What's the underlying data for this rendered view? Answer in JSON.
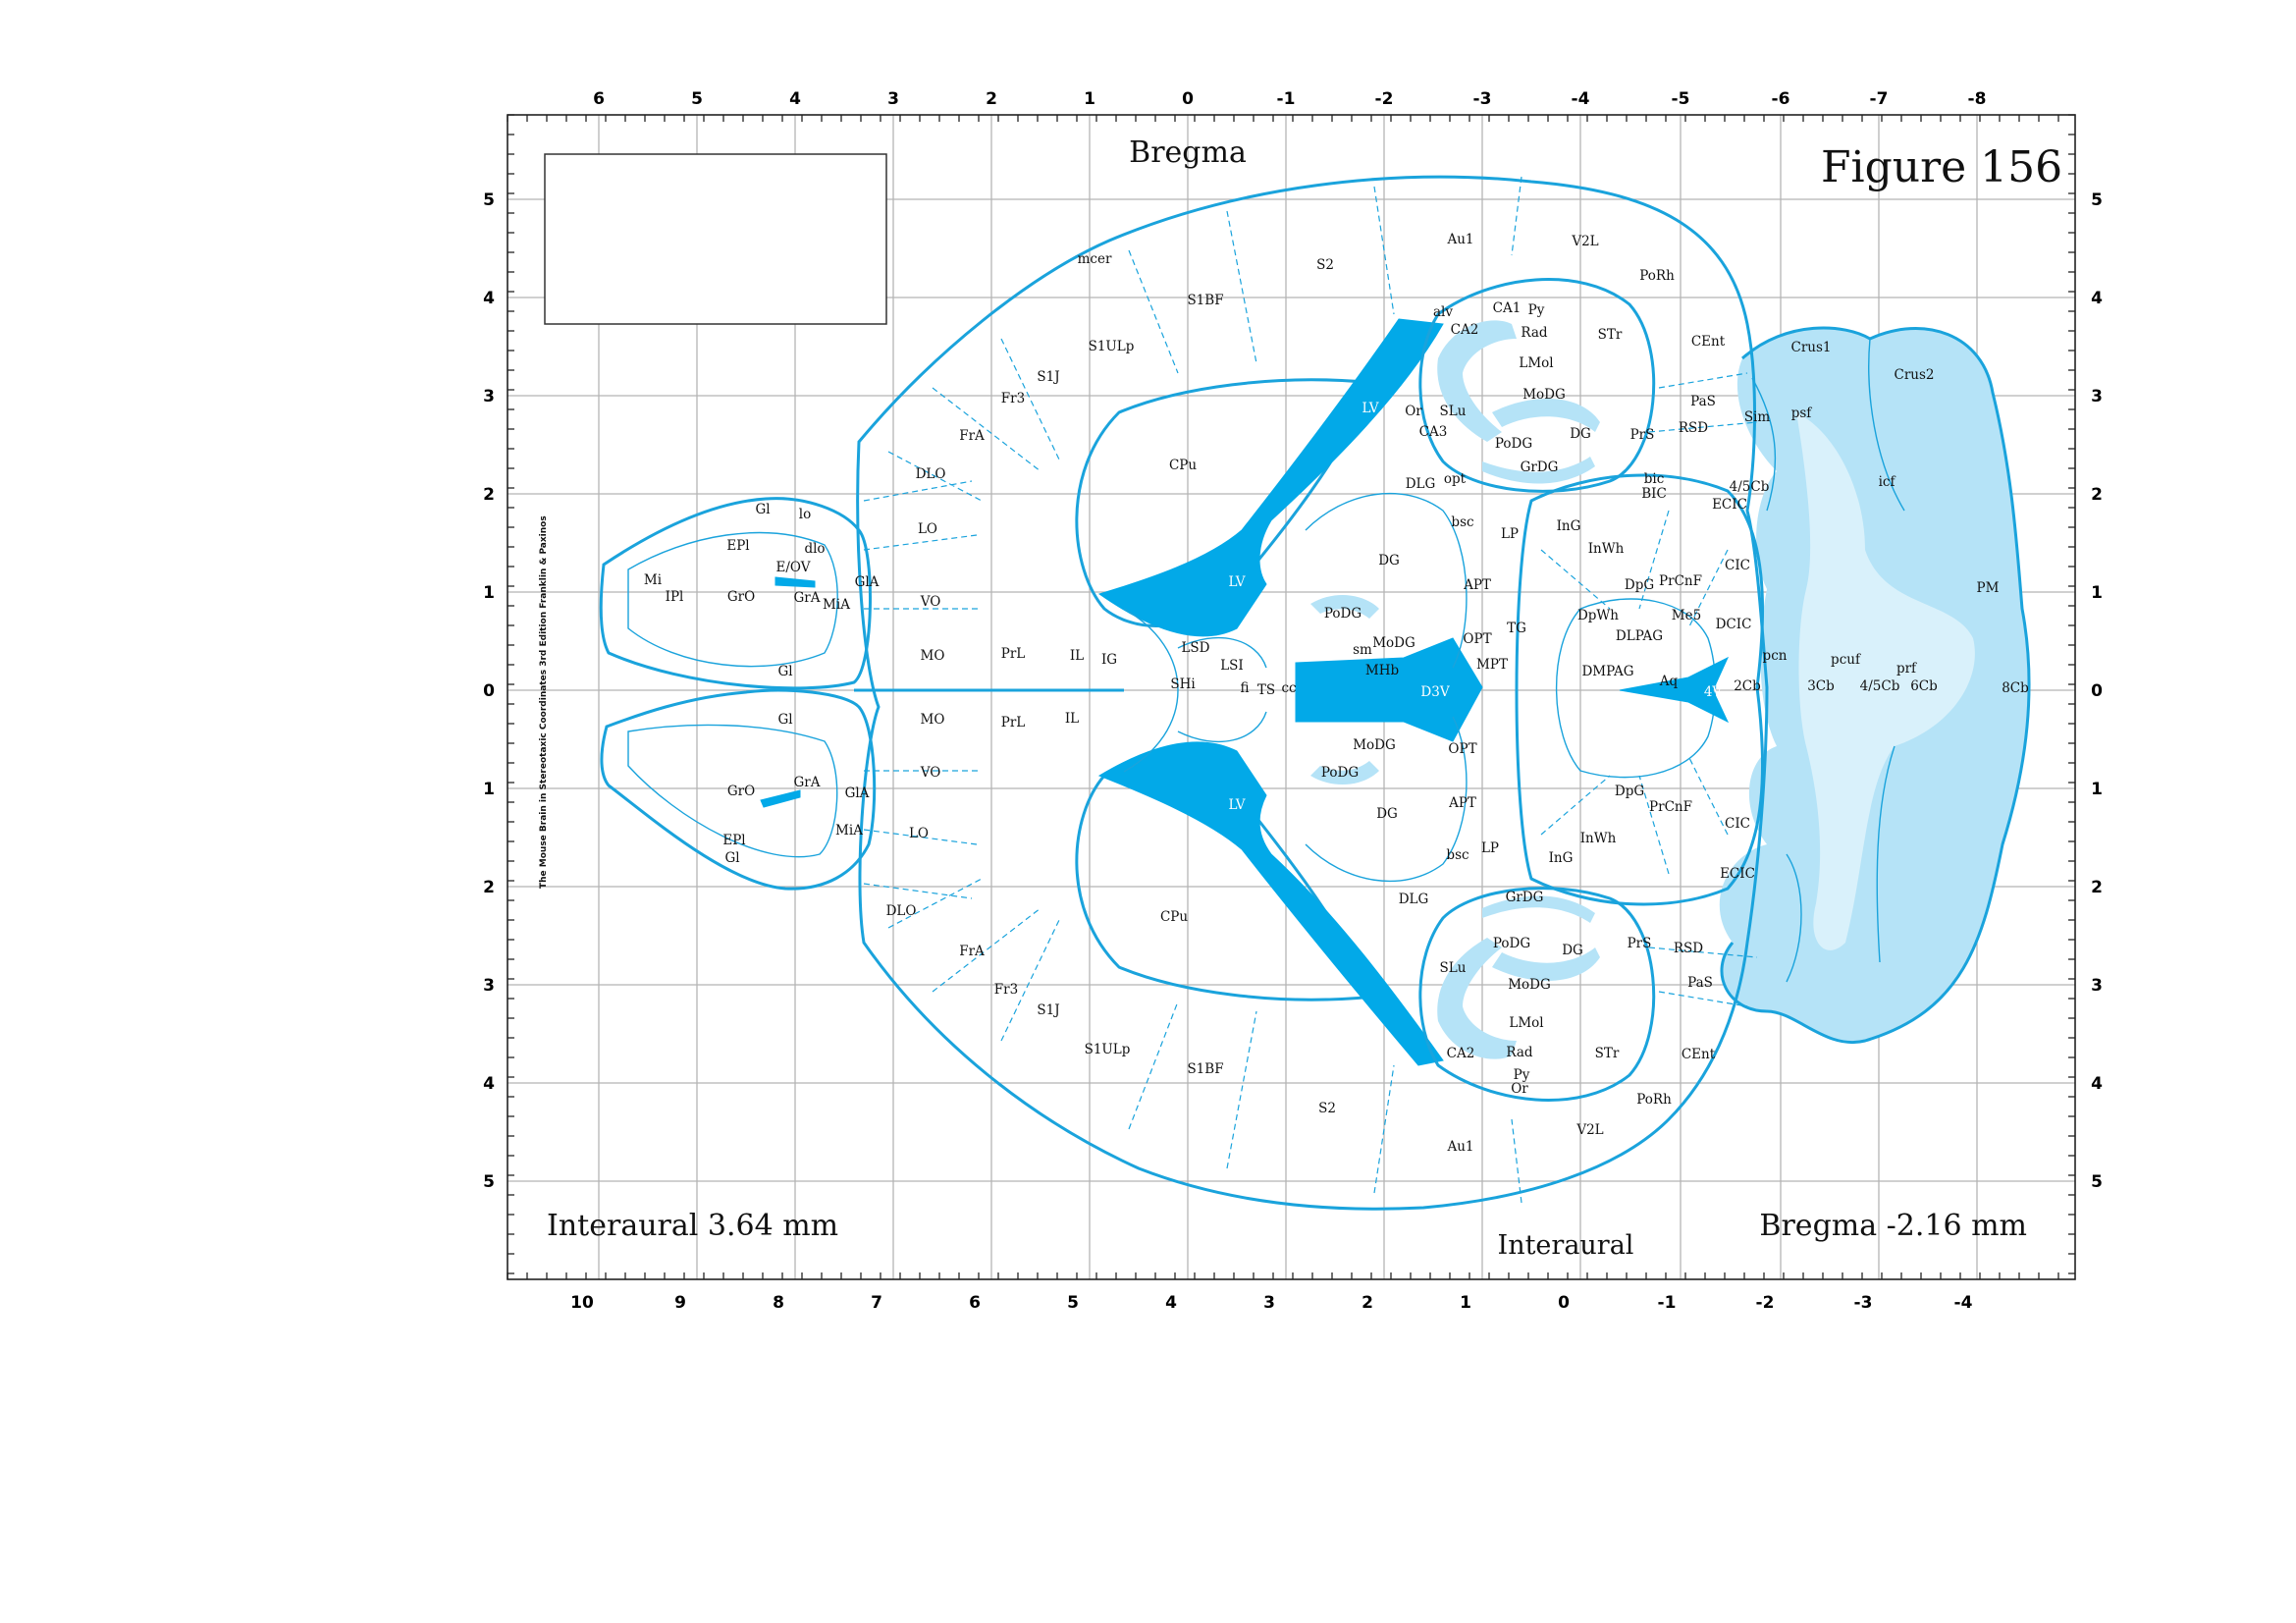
{
  "figure": {
    "title": "Figure 156",
    "top_label": "Bregma",
    "bottom_center_label": "Interaural",
    "left_caption": "Interaural 3.64 mm",
    "right_caption": "Bregma -2.16 mm",
    "credit": "The Mouse Brain in Stereotaxic Coordinates 3rd Edition  Franklin & Paxinos"
  },
  "axes": {
    "top_ticks": [
      "6",
      "5",
      "4",
      "3",
      "2",
      "1",
      "0",
      "-1",
      "-2",
      "-3",
      "-4",
      "-5",
      "-6",
      "-7",
      "-8"
    ],
    "bottom_ticks": [
      "10",
      "9",
      "8",
      "7",
      "6",
      "5",
      "4",
      "3",
      "2",
      "1",
      "0",
      "-1",
      "-2",
      "-3",
      "-4"
    ],
    "side_ticks": [
      "5",
      "4",
      "3",
      "2",
      "1",
      "0",
      "1",
      "2",
      "3",
      "4",
      "5"
    ]
  },
  "regions": {
    "upper": {
      "mcer": "mcer",
      "S2": "S2",
      "Au1": "Au1",
      "V2L": "V2L",
      "PoRh": "PoRh",
      "S1BF": "S1BF",
      "S1ULp": "S1ULp",
      "S1J": "S1J",
      "Fr3": "Fr3",
      "FrA": "FrA",
      "DLO": "DLO",
      "LO": "LO",
      "VO": "VO",
      "MO": "MO",
      "PrL": "PrL",
      "IL": "IL",
      "CPu": "CPu",
      "LV": "LV",
      "LV2": "LV",
      "alv": "alv",
      "CA1": "CA1",
      "Py": "Py",
      "CA2": "CA2",
      "Rad": "Rad",
      "STr": "STr",
      "CEnt": "CEnt",
      "LMol": "LMol",
      "Or": "Or",
      "SLu": "SLu",
      "MoDG": "MoDG",
      "CA3": "CA3",
      "PoDG": "PoDG",
      "DG": "DG",
      "GrDG": "GrDG",
      "PaS": "PaS",
      "PrS": "PrS",
      "RSD": "RSD",
      "DLG": "DLG",
      "opt": "opt",
      "bic": "bic",
      "BIC": "BIC",
      "ECIC": "ECIC",
      "bsc": "bsc",
      "LP": "LP",
      "InG": "InG",
      "InWh": "InWh",
      "CIC": "CIC",
      "DG2": "DG",
      "APT": "APT",
      "DpG": "DpG",
      "PrCnF": "PrCnF",
      "PoDG2": "PoDG",
      "DpWh": "DpWh",
      "Me5": "Me5",
      "DLPAG": "DLPAG",
      "DCIC": "DCIC",
      "OPT": "OPT",
      "TG": "TG",
      "MoDG2": "MoDG",
      "sm": "sm",
      "MPT": "MPT",
      "MHb": "MHb",
      "LSD": "LSD",
      "LSI": "LSI",
      "fi": "fi",
      "SHi": "SHi",
      "TS": "TS",
      "cc": "cc",
      "IG": "IG",
      "D3V": "D3V",
      "DMPAG": "DMPAG",
      "Aq": "Aq",
      "V4": "4V"
    },
    "lower": {
      "MO": "MO",
      "PrL": "PrL",
      "IL": "IL",
      "VO": "VO",
      "LO": "LO",
      "DLO": "DLO",
      "FrA": "FrA",
      "Fr3": "Fr3",
      "S1J": "S1J",
      "S1ULp": "S1ULp",
      "S1BF": "S1BF",
      "S2": "S2",
      "Au1": "Au1",
      "V2L": "V2L",
      "PoRh": "PoRh",
      "CPu": "CPu",
      "LV": "LV",
      "MoDG": "MoDG",
      "PoDG": "PoDG",
      "DG": "DG",
      "OPT": "OPT",
      "APT": "APT",
      "bsc": "bsc",
      "LP": "LP",
      "InG": "InG",
      "InWh": "InWh",
      "DpG": "DpG",
      "PrCnF": "PrCnF",
      "CIC": "CIC",
      "ECIC": "ECIC",
      "DLG": "DLG",
      "GrDG": "GrDG",
      "PoDG2": "PoDG",
      "DG2": "DG",
      "PrS": "PrS",
      "RSD": "RSD",
      "SLu": "SLu",
      "MoDG2": "MoDG",
      "PaS": "PaS",
      "LMol": "LMol",
      "CA2": "CA2",
      "Rad": "Rad",
      "STr": "STr",
      "CEnt": "CEnt",
      "Py": "Py",
      "Or": "Or"
    },
    "olfactory": {
      "Gl_top": "Gl",
      "lo": "lo",
      "EPl": "EPl",
      "dlo": "dlo",
      "Mi": "Mi",
      "IPl": "IPl",
      "GrO": "GrO",
      "E_OV": "E/OV",
      "GrA": "GrA",
      "MiA": "MiA",
      "GlA": "GlA",
      "Gl_mid": "Gl",
      "Gl_low": "Gl",
      "GrO2": "GrO",
      "GrA2": "GrA",
      "GlA2": "GlA",
      "MiA2": "MiA",
      "EPl2": "EPl",
      "Gl_bottom": "Gl"
    },
    "cerebellum": {
      "Crus1": "Crus1",
      "Crus2": "Crus2",
      "Sim": "Sim",
      "psf": "psf",
      "fourfive": "4/5Cb",
      "icf": "icf",
      "PM": "PM",
      "pcn": "pcn",
      "twoCb": "2Cb",
      "threeCb": "3Cb",
      "pcuf": "pcuf",
      "fourfive2": "4/5Cb",
      "prf": "prf",
      "sixCb": "6Cb",
      "eightCb": "8Cb"
    }
  },
  "colors": {
    "outline": "#1aa3dc",
    "ventricle": "#02a9e8",
    "pale": "#b5e3f7",
    "grid": "#b5b5b5"
  }
}
